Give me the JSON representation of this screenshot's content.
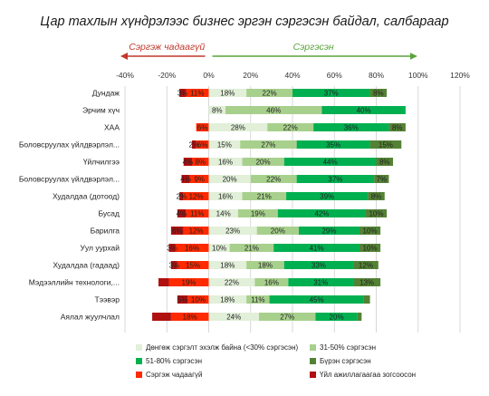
{
  "chart_data": {
    "type": "bar",
    "stacked": "diverging",
    "title": "Цар тахлын хүндрэлээс бизнес эргэн сэргэсэн байдал, салбараар",
    "direction_labels": {
      "negative": "Сэргэж чадаагүй",
      "positive": "Сэргэсэн"
    },
    "colors": {
      "negative_arrow": "#c0392b",
      "positive_arrow": "#5aa43c",
      "s1": "#e2efd9",
      "s2": "#a8d08d",
      "s3": "#00b050",
      "s4": "#548235",
      "s5": "#ff2a00",
      "s6": "#b01010",
      "grid": "#cfcfcf"
    },
    "xlim": [
      -40,
      120
    ],
    "x_ticks": [
      "-40%",
      "-20%",
      "0%",
      "20%",
      "40%",
      "60%",
      "80%",
      "100%",
      "120%"
    ],
    "x_tick_values": [
      -40,
      -20,
      0,
      20,
      40,
      60,
      80,
      100,
      120
    ],
    "categories": [
      "Дундаж",
      "Эрчим хүч",
      "ХАА",
      "Боловсруулах үйлдвэрлэл...",
      "Үйлчилгээ",
      "Боловсруулах үйлдвэрлэл...",
      "Худалдаа (дотоод)",
      "Бусад",
      "Барилга",
      "Уул уурхай",
      "Худалдаа (гадаад)",
      "Мэдээллийн технологи,...",
      "Тээвэр",
      "Аялал жуулчлал"
    ],
    "series": [
      {
        "key": "s1",
        "name": "Дөнгөж сэргэлт эхэлж байна (<30% сэргэсэн)",
        "side": "positive",
        "values": [
          18,
          8,
          28,
          15,
          16,
          20,
          16,
          14,
          23,
          10,
          18,
          22,
          18,
          24
        ],
        "labels": [
          "18%",
          "8%",
          "28%",
          "15%",
          "16%",
          "20%",
          "16%",
          "14%",
          "23%",
          "10%",
          "18%",
          "22%",
          "18%",
          "24%"
        ]
      },
      {
        "key": "s2",
        "name": "31-50% сэргэсэн",
        "side": "positive",
        "values": [
          22,
          46,
          22,
          27,
          20,
          22,
          21,
          19,
          20,
          21,
          18,
          16,
          11,
          27
        ],
        "labels": [
          "22%",
          "46%",
          "22%",
          "27%",
          "20%",
          "22%",
          "21%",
          "19%",
          "20%",
          "21%",
          "18%",
          "16%",
          "11%",
          "27%"
        ]
      },
      {
        "key": "s3",
        "name": "51-80% сэргэсэн",
        "side": "positive",
        "values": [
          37,
          40,
          36,
          35,
          44,
          37,
          39,
          42,
          29,
          41,
          33,
          31,
          45,
          20
        ],
        "labels": [
          "37%",
          "40%",
          "36%",
          "35%",
          "44%",
          "37%",
          "39%",
          "42%",
          "29%",
          "41%",
          "33%",
          "31%",
          "45%",
          "20%"
        ]
      },
      {
        "key": "s4",
        "name": "Бүрэн сэргэсэн",
        "side": "positive",
        "values": [
          8,
          0,
          8,
          15,
          8,
          7,
          8,
          10,
          10,
          10,
          12,
          13,
          3,
          2
        ],
        "labels": [
          "8%",
          "",
          "8%",
          "15%",
          "8%",
          "7%",
          "8%",
          "10%",
          "10%",
          "10%",
          "12%",
          "13%",
          "",
          ""
        ]
      },
      {
        "key": "s5",
        "name": "Сэргэж чадаагүй",
        "side": "negative",
        "values": [
          11,
          0,
          6,
          6,
          8,
          9,
          12,
          11,
          12,
          16,
          15,
          19,
          10,
          18
        ],
        "labels": [
          "11%",
          "",
          "6%",
          "6%",
          "8%",
          "9%",
          "12%",
          "11%",
          "12%",
          "16%",
          "15%",
          "19%",
          "10%",
          "18%"
        ]
      },
      {
        "key": "s6",
        "name": "Үйл ажиллагаагаа зогсоосон",
        "side": "negative",
        "values": [
          3,
          0,
          0,
          2,
          4,
          4,
          2,
          4,
          6,
          3,
          3,
          5,
          5,
          9
        ],
        "labels": [
          "3%",
          "",
          "",
          "2%",
          "4%",
          "4%",
          "2%",
          "4%",
          "6%",
          "3%",
          "3%",
          "",
          "5%",
          ""
        ]
      }
    ],
    "legend_placement": "bottom",
    "grid": true
  }
}
